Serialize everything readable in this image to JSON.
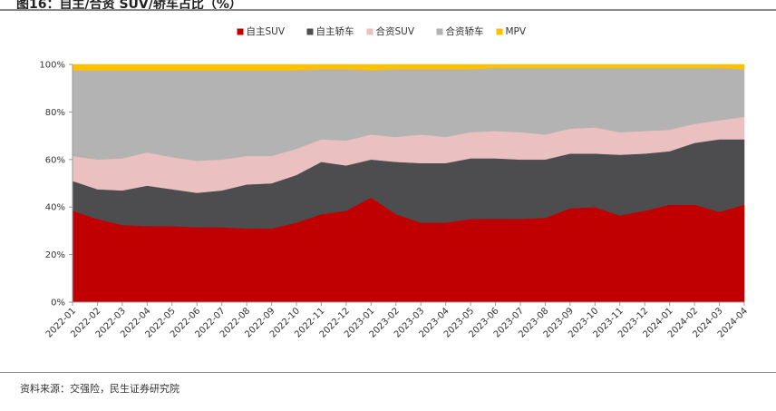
{
  "figure": {
    "title": "图16：自主/合资 SUV/轿车占比（%）",
    "source": "资料来源：交强险，民生证券研究院"
  },
  "chart_data": {
    "type": "area",
    "stacked": true,
    "percent": true,
    "categories": [
      "2022-01",
      "2022-02",
      "2022-03",
      "2022-04",
      "2022-05",
      "2022-06",
      "2022-07",
      "2022-08",
      "2022-09",
      "2022-10",
      "2022-11",
      "2022-12",
      "2023-01",
      "2023-02",
      "2023-03",
      "2023-04",
      "2023-05",
      "2023-06",
      "2023-07",
      "2023-08",
      "2023-09",
      "2023-10",
      "2023-11",
      "2023-12",
      "2024-01",
      "2024-02",
      "2024-03",
      "2024-04"
    ],
    "ylim": [
      0,
      100
    ],
    "yticks": [
      0,
      20,
      40,
      60,
      80,
      100
    ],
    "ytick_labels": [
      "0%",
      "20%",
      "40%",
      "60%",
      "80%",
      "100%"
    ],
    "legend_position": "top-center",
    "series": [
      {
        "name": "自主SUV",
        "color": "#c00000",
        "values": [
          38.5,
          35,
          32.5,
          32,
          32,
          31.5,
          31.5,
          31,
          31,
          33.5,
          37,
          38.5,
          44,
          37,
          33.5,
          33.5,
          35,
          35,
          35,
          35.5,
          39.5,
          40,
          36.5,
          38.5,
          41,
          41,
          38,
          41
        ]
      },
      {
        "name": "自主轿车",
        "color": "#4d4d4f",
        "values": [
          12.5,
          12.5,
          14.5,
          17,
          15.5,
          14.5,
          15.5,
          18.5,
          19,
          20,
          22,
          19,
          16,
          22,
          25,
          25,
          25.5,
          25.5,
          25,
          24.5,
          23,
          22.5,
          25.5,
          24,
          22.5,
          26,
          30.5,
          27.5
        ]
      },
      {
        "name": "合资SUV",
        "color": "#eac0c0",
        "values": [
          10.5,
          12.5,
          13.5,
          14,
          13.5,
          13.5,
          13,
          12,
          11.5,
          11,
          9.5,
          10.5,
          10.5,
          10.5,
          12,
          11,
          11,
          11.5,
          11.5,
          10.5,
          10.5,
          11,
          9.5,
          9.5,
          9,
          8,
          8,
          9.5
        ]
      },
      {
        "name": "合资轿车",
        "color": "#b3b3b3",
        "values": [
          36,
          37.5,
          37,
          34.5,
          36.5,
          38,
          37.5,
          36,
          36,
          33,
          29.5,
          30,
          27,
          28.5,
          27.5,
          28.5,
          26.5,
          26.5,
          27,
          28,
          25.5,
          25,
          27,
          26.5,
          26,
          23.5,
          22,
          20
        ]
      },
      {
        "name": "MPV",
        "color": "#ffc000",
        "values": [
          2.5,
          2.5,
          2.5,
          2.5,
          2.5,
          2.5,
          2.5,
          2.5,
          2.5,
          2.5,
          2,
          2,
          2.5,
          2,
          2,
          2,
          2,
          1.5,
          1.5,
          1.5,
          1.5,
          1.5,
          1.5,
          1.5,
          1.5,
          1.5,
          1.5,
          2
        ]
      }
    ]
  }
}
